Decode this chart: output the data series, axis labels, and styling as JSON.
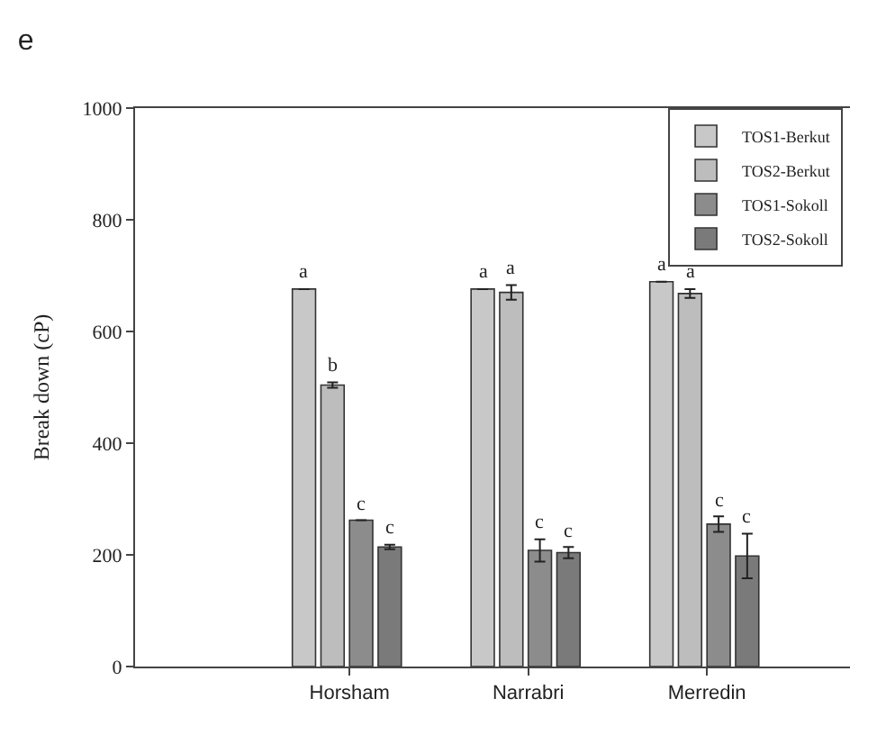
{
  "chart_data": {
    "type": "bar",
    "title": "e",
    "ylabel": "Break down (cP)",
    "categories": [
      "Horsham",
      "Narrabri",
      "Merredin"
    ],
    "series": [
      {
        "name": "TOS1-Berkut",
        "color": "#c8c8c8",
        "values": [
          676,
          676,
          689
        ],
        "errors": [
          null,
          null,
          null
        ],
        "value_labels": [
          "a",
          "a",
          "a"
        ]
      },
      {
        "name": "TOS2-Berkut",
        "color": "#bdbdbd",
        "values": [
          504,
          670,
          668
        ],
        "errors": [
          5,
          13,
          8
        ],
        "value_labels": [
          "b",
          "a",
          "a"
        ]
      },
      {
        "name": "TOS1-Sokoll",
        "color": "#8c8c8c",
        "values": [
          262,
          208,
          255
        ],
        "errors": [
          null,
          20,
          14
        ],
        "value_labels": [
          "c",
          "c",
          "c"
        ]
      },
      {
        "name": "TOS2-Sokoll",
        "color": "#7a7a7a",
        "values": [
          214,
          204,
          198
        ],
        "errors": [
          4,
          10,
          40
        ],
        "value_labels": [
          "c",
          "c",
          "c"
        ]
      }
    ],
    "ylim": [
      0,
      1000
    ],
    "yticks": [
      0,
      200,
      400,
      600,
      800,
      1000
    ],
    "legend": "top right"
  }
}
